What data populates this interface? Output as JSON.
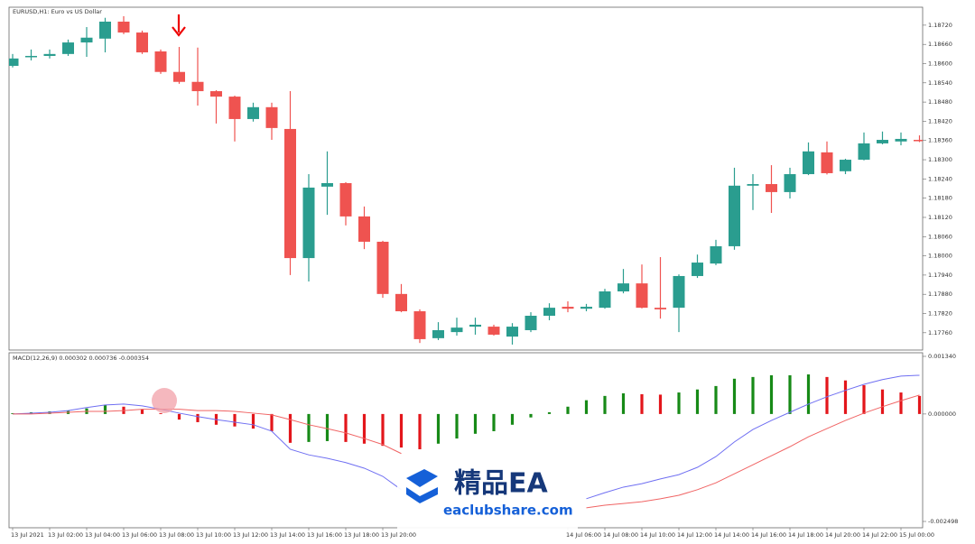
{
  "chart_data": [
    {
      "type": "candlestick",
      "title": "EURUSD,H1: Euro vs US Dollar",
      "categories": [
        "13 Jul 2021",
        null,
        "13 Jul 02:00",
        null,
        "13 Jul 04:00",
        null,
        "13 Jul 06:00",
        null,
        "13 Jul 08:00",
        null,
        "13 Jul 10:00",
        null,
        "13 Jul 12:00",
        null,
        "13 Jul 14:00",
        null,
        "13 Jul 16:00",
        null,
        "13 Jul 18:00",
        null,
        "13 Jul 20:00",
        null,
        null,
        null,
        null,
        null,
        null,
        null,
        null,
        null,
        "14 Jul 06:00",
        null,
        "14 Jul 08:00",
        null,
        "14 Jul 10:00",
        null,
        "14 Jul 12:00",
        null,
        "14 Jul 14:00",
        null,
        "14 Jul 16:00",
        null,
        "14 Jul 18:00",
        null,
        "14 Jul 20:00",
        null,
        "14 Jul 22:00",
        null,
        "15 Jul 00:00",
        null
      ],
      "open": [
        1.18593,
        1.18621,
        1.18624,
        1.1863,
        1.18666,
        1.18678,
        1.18731,
        1.18697,
        1.18638,
        1.18574,
        1.18543,
        1.18514,
        1.18497,
        1.18427,
        1.18464,
        1.18396,
        1.17993,
        1.18216,
        1.18227,
        1.18123,
        1.18044,
        1.17881,
        1.17827,
        1.17743,
        1.17762,
        1.17779,
        1.17779,
        1.17748,
        1.17768,
        1.17813,
        1.17841,
        1.17835,
        1.17838,
        1.17889,
        1.17914,
        1.17838,
        1.17838,
        1.17937,
        1.17976,
        1.1803,
        1.18219,
        1.18224,
        1.18199,
        1.18255,
        1.18323,
        1.18264,
        1.183,
        1.18351,
        1.18357,
        1.18362
      ],
      "high": [
        1.1863,
        1.18644,
        1.18644,
        1.18675,
        1.18714,
        1.18743,
        1.18748,
        1.18703,
        1.18644,
        1.18652,
        1.1865,
        1.18517,
        1.185,
        1.18478,
        1.18478,
        1.18514,
        1.18255,
        1.18326,
        1.1823,
        1.18154,
        1.18047,
        1.17912,
        1.17833,
        1.17793,
        1.17807,
        1.17807,
        1.17785,
        1.1779,
        1.17824,
        1.17852,
        1.17858,
        1.1785,
        1.17897,
        1.17959,
        1.17973,
        1.17996,
        1.17942,
        1.18004,
        1.1805,
        1.18275,
        1.18255,
        1.18283,
        1.18275,
        1.18354,
        1.18357,
        1.18303,
        1.18385,
        1.18388,
        1.18385,
        1.18376
      ],
      "low": [
        1.18588,
        1.1861,
        1.18616,
        1.18624,
        1.18621,
        1.18635,
        1.18692,
        1.1863,
        1.18568,
        1.18537,
        1.18469,
        1.18413,
        1.18357,
        1.18419,
        1.18362,
        1.1794,
        1.1792,
        1.18128,
        1.18095,
        1.18021,
        1.17869,
        1.17824,
        1.17728,
        1.17737,
        1.17751,
        1.17754,
        1.17751,
        1.17723,
        1.17762,
        1.17799,
        1.17824,
        1.17827,
        1.17835,
        1.17883,
        1.17836,
        1.17804,
        1.17762,
        1.17931,
        1.17971,
        1.18019,
        1.18143,
        1.18134,
        1.18179,
        1.18252,
        1.18254,
        1.18255,
        1.18298,
        1.18348,
        1.18345,
        1.18355
      ],
      "close": [
        1.18616,
        1.18624,
        1.1863,
        1.18666,
        1.18681,
        1.18731,
        1.18697,
        1.18635,
        1.18574,
        1.18543,
        1.18514,
        1.18497,
        1.18427,
        1.18464,
        1.18399,
        1.17993,
        1.18213,
        1.18227,
        1.18123,
        1.18044,
        1.17881,
        1.17827,
        1.1774,
        1.17768,
        1.17776,
        1.17785,
        1.17754,
        1.17779,
        1.17813,
        1.17838,
        1.17835,
        1.17841,
        1.17889,
        1.17914,
        1.17838,
        1.17833,
        1.17937,
        1.17979,
        1.1803,
        1.18219,
        1.18224,
        1.18199,
        1.18255,
        1.18326,
        1.18258,
        1.183,
        1.18351,
        1.18362,
        1.18365,
        1.18359
      ],
      "up_color": "#2a9d8f",
      "down_color": "#ef5350",
      "ylim": [
        1.17706,
        1.18776
      ],
      "yticks": [
        {
          "value": 1.1872,
          "label": "1.18720"
        },
        {
          "value": 1.1866,
          "label": "1.18660"
        },
        {
          "value": 1.186,
          "label": "1.18600"
        },
        {
          "value": 1.1854,
          "label": "1.18540"
        },
        {
          "value": 1.1848,
          "label": "1.18480"
        },
        {
          "value": 1.1842,
          "label": "1.18420"
        },
        {
          "value": 1.1836,
          "label": "1.18360"
        },
        {
          "value": 1.183,
          "label": "1.18300"
        },
        {
          "value": 1.1824,
          "label": "1.18240"
        },
        {
          "value": 1.1818,
          "label": "1.18180"
        },
        {
          "value": 1.1812,
          "label": "1.18120"
        },
        {
          "value": 1.1806,
          "label": "1.18060"
        },
        {
          "value": 1.18,
          "label": "1.18000"
        },
        {
          "value": 1.1794,
          "label": "1.17940"
        },
        {
          "value": 1.1788,
          "label": "1.17880"
        },
        {
          "value": 1.1782,
          "label": "1.17820"
        },
        {
          "value": 1.1776,
          "label": "1.17760"
        }
      ]
    },
    {
      "type": "macd",
      "title": "MACD(12,26,9) 0.000302 0.000736 -0.000354",
      "histogram": {
        "up_color": "#178a17",
        "down_color": "#e3161b",
        "values": [
          2e-05,
          4e-05,
          6e-05,
          8e-05,
          0.00013,
          0.00021,
          0.00017,
          0.00011,
          2e-05,
          -0.00013,
          -0.00019,
          -0.00025,
          -0.00029,
          -0.00034,
          -0.0004,
          -0.00067,
          -0.00065,
          -0.00063,
          -0.00065,
          -0.00069,
          -0.00074,
          -0.00078,
          -0.00082,
          -0.00069,
          -0.00057,
          -0.00046,
          -0.0004,
          -0.00025,
          -8e-05,
          4e-05,
          0.00017,
          0.00032,
          0.00042,
          0.00048,
          0.00046,
          0.00045,
          0.0005,
          0.00057,
          0.00065,
          0.00082,
          0.00086,
          0.0009,
          0.0009,
          0.00092,
          0.00086,
          0.00078,
          0.00067,
          0.00057,
          0.0005,
          0.00042
        ]
      },
      "series": [
        {
          "color": "#6f6ff2",
          "values": [
            0,
            2e-05,
            4e-05,
            8e-05,
            0.00015,
            0.00021,
            0.00023,
            0.00019,
            0.00011,
            2e-05,
            -6e-05,
            -0.00013,
            -0.00019,
            -0.00025,
            -0.0004,
            -0.00082,
            -0.00095,
            -0.00103,
            -0.00113,
            -0.00126,
            -0.00145,
            -0.00176,
            null,
            null,
            null,
            null,
            null,
            null,
            null,
            null,
            null,
            -0.00197,
            -0.00183,
            -0.0017,
            -0.00162,
            -0.00151,
            -0.00141,
            -0.00124,
            -0.00099,
            -0.00065,
            -0.00036,
            -0.00015,
            4e-05,
            0.00023,
            0.0004,
            0.00055,
            0.00069,
            0.0008,
            0.00088,
            0.0009
          ]
        },
        {
          "color": "#f06464",
          "values": [
            0,
            0,
            2e-05,
            4e-05,
            6e-05,
            6e-05,
            8e-05,
            0.00011,
            0.00011,
            0.00011,
            8e-05,
            8e-05,
            6e-05,
            2e-05,
            -2e-05,
            -0.00013,
            -0.00025,
            -0.00034,
            -0.00044,
            -0.00057,
            -0.00071,
            -0.00092,
            null,
            null,
            null,
            null,
            null,
            null,
            null,
            null,
            null,
            -0.00218,
            -0.00212,
            -0.00208,
            -0.00204,
            -0.00197,
            -0.00189,
            -0.00176,
            -0.0016,
            -0.00139,
            -0.00118,
            -0.00097,
            -0.00076,
            -0.00053,
            -0.00034,
            -0.00015,
            2e-05,
            0.00017,
            0.00031,
            0.00044
          ]
        }
      ],
      "ylim": [
        -0.002498,
        0.00134
      ],
      "yticks": [
        {
          "value": 0.00134,
          "label": "0.001340"
        },
        {
          "value": 0,
          "label": "0.000000"
        },
        {
          "value": -0.002498,
          "label": "-0.002498"
        }
      ]
    }
  ],
  "watermark": {
    "title": "精品EA",
    "url": "eaclubshare.com"
  }
}
